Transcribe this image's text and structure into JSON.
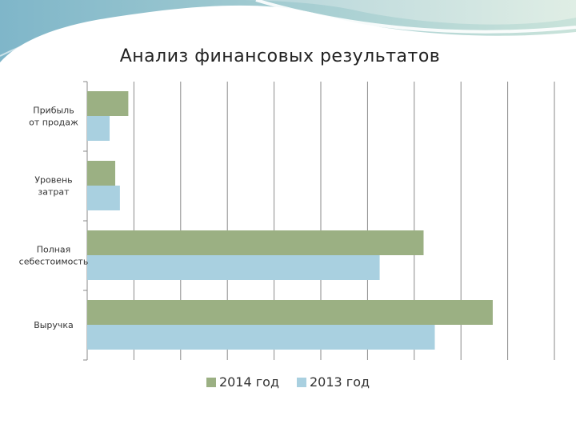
{
  "chart_data": {
    "type": "bar",
    "orientation": "horizontal",
    "title": "Анализ финансовых результатов",
    "categories": [
      "Прибыль от продаж",
      "Уровень затрат",
      "Полная себестоимость",
      "Выручка"
    ],
    "series": [
      {
        "name": "2014 год",
        "color": "#9bb083",
        "values": [
          4.4,
          3.0,
          36.0,
          43.4
        ]
      },
      {
        "name": "2013 год",
        "color": "#a9d0e0",
        "values": [
          2.4,
          3.5,
          31.3,
          37.2
        ]
      }
    ],
    "xlim": [
      0,
      50
    ],
    "grid": true,
    "legend": "bottom",
    "xlabel": "",
    "ylabel": ""
  }
}
